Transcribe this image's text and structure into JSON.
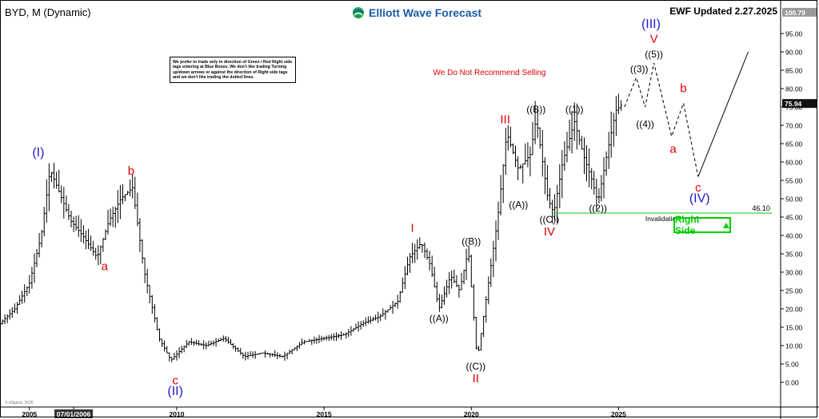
{
  "header": {
    "symbol": "BYD, M (Dynamic)",
    "brand": "Elliott Wave Forecast",
    "updated": "EWF Updated 2.27.2025"
  },
  "note_box": "We prefer to trade only in direction of Green / Red Right side tags entering at Blue Boxes. We don't like trading Turning up/down arrows or against the direction of Right side tags and we don't like trading the dotted lines.",
  "recommendation": "We Do Not Recommend Selling",
  "right_side_label": "Right Side",
  "watermark": "© eSignal, 2025",
  "colors": {
    "red": "#e00000",
    "blue": "#1a1acc",
    "black": "#000000",
    "green": "#00cc00",
    "brand": "#1b5aa6"
  },
  "chart_data": {
    "type": "ohlc-bar",
    "title": "BYD, M (Dynamic)",
    "yscale": "linear",
    "ylim": [
      -5,
      100
    ],
    "x_date_range": [
      "2004-01",
      "2030-06"
    ],
    "y_ticks": [
      0.0,
      5.0,
      10.0,
      15.0,
      20.0,
      25.0,
      30.0,
      35.0,
      40.0,
      45.0,
      50.0,
      55.0,
      60.0,
      65.0,
      70.0,
      75.0,
      80.0,
      85.0,
      90.0,
      95.0
    ],
    "x_ticks": [
      {
        "label": "2005",
        "t": 2005.0
      },
      {
        "label": "07/01/2006",
        "t": 2006.5,
        "highlight": true
      },
      {
        "label": "2010",
        "t": 2010.0
      },
      {
        "label": "2015",
        "t": 2015.0
      },
      {
        "label": "2020",
        "t": 2020.0
      },
      {
        "label": "2025",
        "t": 2025.0
      }
    ],
    "price_tags": [
      {
        "label": "100.79",
        "y": 100.79,
        "style": "gray"
      },
      {
        "label": "75.94",
        "y": 75.94,
        "style": "dark"
      }
    ],
    "price_path": [
      [
        2004.0,
        16
      ],
      [
        2004.5,
        20
      ],
      [
        2005.0,
        27
      ],
      [
        2005.4,
        40
      ],
      [
        2005.7,
        58
      ],
      [
        2006.0,
        52
      ],
      [
        2006.4,
        44
      ],
      [
        2006.8,
        40
      ],
      [
        2007.3,
        34
      ],
      [
        2007.7,
        44
      ],
      [
        2008.1,
        50
      ],
      [
        2008.5,
        53
      ],
      [
        2008.9,
        30
      ],
      [
        2009.4,
        12
      ],
      [
        2009.8,
        6
      ],
      [
        2010.4,
        11
      ],
      [
        2011.0,
        10
      ],
      [
        2011.6,
        12
      ],
      [
        2012.3,
        7
      ],
      [
        2012.9,
        8
      ],
      [
        2013.6,
        7
      ],
      [
        2014.3,
        11
      ],
      [
        2015.0,
        12
      ],
      [
        2015.7,
        13
      ],
      [
        2016.3,
        16
      ],
      [
        2016.9,
        18
      ],
      [
        2017.5,
        22
      ],
      [
        2017.9,
        34
      ],
      [
        2018.3,
        38
      ],
      [
        2018.6,
        32
      ],
      [
        2018.9,
        20
      ],
      [
        2019.3,
        29
      ],
      [
        2019.6,
        25
      ],
      [
        2019.9,
        36
      ],
      [
        2020.2,
        6
      ],
      [
        2020.6,
        28
      ],
      [
        2020.9,
        45
      ],
      [
        2021.2,
        68
      ],
      [
        2021.6,
        58
      ],
      [
        2022.0,
        62
      ],
      [
        2022.2,
        72
      ],
      [
        2022.6,
        50
      ],
      [
        2022.8,
        46
      ],
      [
        2023.1,
        60
      ],
      [
        2023.5,
        71
      ],
      [
        2023.8,
        62
      ],
      [
        2024.1,
        55
      ],
      [
        2024.3,
        49
      ],
      [
        2024.6,
        62
      ],
      [
        2024.9,
        74
      ],
      [
        2025.15,
        75.94
      ]
    ],
    "projection": {
      "dashed": [
        [
          2025.2,
          75
        ],
        [
          2025.6,
          83
        ],
        [
          2025.9,
          75
        ],
        [
          2026.2,
          87
        ],
        [
          2026.8,
          67
        ],
        [
          2027.2,
          76
        ],
        [
          2027.7,
          56
        ]
      ],
      "solid": [
        [
          2027.7,
          56
        ],
        [
          2029.4,
          90
        ]
      ]
    },
    "invalidation": {
      "y": 46.1,
      "x_start": 2022.8,
      "x_end": 2030.2,
      "value_label": "46.10",
      "text": "Invalidation Level"
    },
    "wave_labels": [
      {
        "text": "(I)",
        "t": 2005.3,
        "y": 61.5,
        "color": "blue",
        "size": 16
      },
      {
        "text": "b",
        "t": 2008.45,
        "y": 56.5,
        "color": "red",
        "size": 15
      },
      {
        "text": "a",
        "t": 2007.55,
        "y": 30.5,
        "color": "red",
        "size": 15
      },
      {
        "text": "c",
        "t": 2009.95,
        "y": -0.5,
        "color": "red",
        "size": 15
      },
      {
        "text": "(II)",
        "t": 2009.95,
        "y": -3.5,
        "color": "blue",
        "size": 16
      },
      {
        "text": "I",
        "t": 2018.0,
        "y": 41,
        "color": "red",
        "size": 15
      },
      {
        "text": "((B))",
        "t": 2020.0,
        "y": 37.5,
        "color": "black",
        "size": 12
      },
      {
        "text": "((A))",
        "t": 2018.9,
        "y": 16.5,
        "color": "black",
        "size": 12
      },
      {
        "text": "((C))",
        "t": 2020.15,
        "y": 3.5,
        "color": "black",
        "size": 12
      },
      {
        "text": "II",
        "t": 2020.15,
        "y": 0.0,
        "color": "red",
        "size": 15
      },
      {
        "text": "III",
        "t": 2021.15,
        "y": 70.5,
        "color": "red",
        "size": 15
      },
      {
        "text": "((B))",
        "t": 2022.2,
        "y": 73.5,
        "color": "black",
        "size": 12
      },
      {
        "text": "((A))",
        "t": 2021.6,
        "y": 47.5,
        "color": "black",
        "size": 12
      },
      {
        "text": "((C))",
        "t": 2022.65,
        "y": 43.5,
        "color": "black",
        "size": 12
      },
      {
        "text": "IV",
        "t": 2022.65,
        "y": 40.0,
        "color": "red",
        "size": 15
      },
      {
        "text": "((1))",
        "t": 2023.5,
        "y": 73.5,
        "color": "black",
        "size": 12
      },
      {
        "text": "((2))",
        "t": 2024.3,
        "y": 46.5,
        "color": "black",
        "size": 12
      },
      {
        "text": "((3))",
        "t": 2025.7,
        "y": 84.5,
        "color": "black",
        "size": 12
      },
      {
        "text": "((4))",
        "t": 2025.9,
        "y": 69.5,
        "color": "black",
        "size": 12
      },
      {
        "text": "((5))",
        "t": 2026.2,
        "y": 88.5,
        "color": "black",
        "size": 12
      },
      {
        "text": "V",
        "t": 2026.2,
        "y": 92.5,
        "color": "red",
        "size": 15
      },
      {
        "text": "(III)",
        "t": 2026.1,
        "y": 96.5,
        "color": "blue",
        "size": 16
      },
      {
        "text": "b",
        "t": 2027.2,
        "y": 79.0,
        "color": "red",
        "size": 15
      },
      {
        "text": "a",
        "t": 2026.85,
        "y": 62.5,
        "color": "red",
        "size": 15
      },
      {
        "text": "c",
        "t": 2027.7,
        "y": 52.0,
        "color": "red",
        "size": 15
      },
      {
        "text": "(IV)",
        "t": 2027.75,
        "y": 49.0,
        "color": "blue",
        "size": 16
      }
    ]
  }
}
